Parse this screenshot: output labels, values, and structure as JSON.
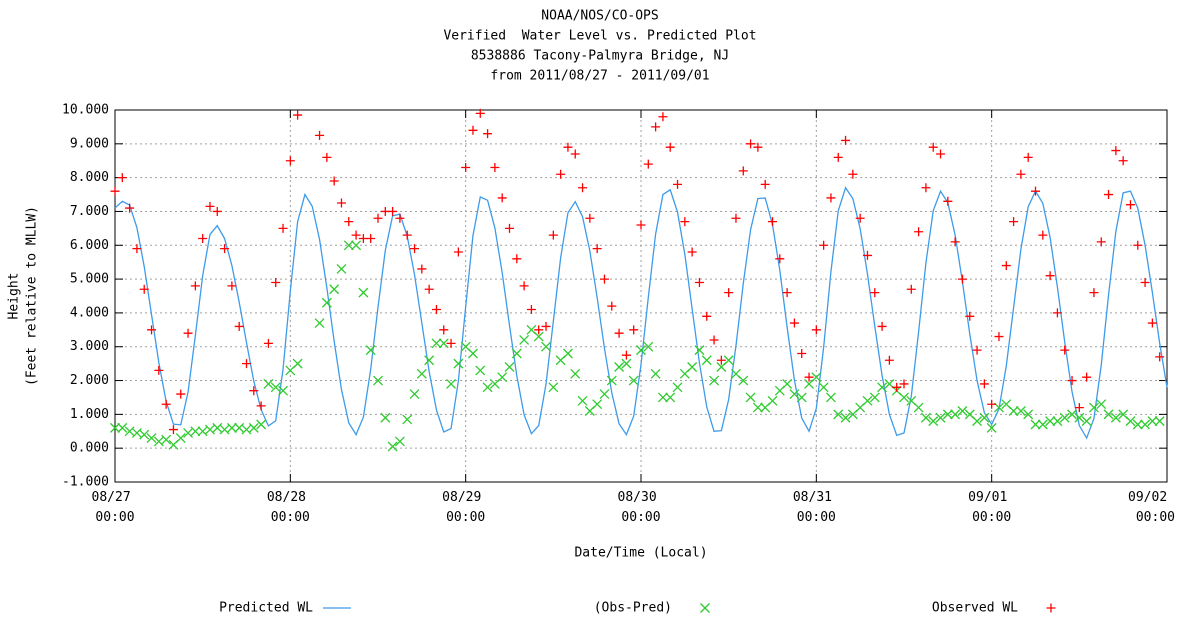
{
  "chart_data": {
    "type": "line",
    "title": [
      "NOAA/NOS/CO-OPS",
      "Verified  Water Level vs. Predicted Plot",
      "8538886 Tacony-Palmyra Bridge, NJ",
      "from 2011/08/27 - 2011/09/01"
    ],
    "ylabel": [
      "Height",
      "(Feet relative to MLLW)"
    ],
    "xlabel": "Date/Time (Local)",
    "ylim": [
      -1,
      10
    ],
    "yticks": [
      {
        "value": 10,
        "label": "10.000"
      },
      {
        "value": 9,
        "label": "9.000"
      },
      {
        "value": 8,
        "label": "8.000"
      },
      {
        "value": 7,
        "label": "7.000"
      },
      {
        "value": 6,
        "label": "6.000"
      },
      {
        "value": 5,
        "label": "5.000"
      },
      {
        "value": 4,
        "label": "4.000"
      },
      {
        "value": 3,
        "label": "3.000"
      },
      {
        "value": 2,
        "label": "2.000"
      },
      {
        "value": 1,
        "label": "1.000"
      },
      {
        "value": 0,
        "label": "0.000"
      },
      {
        "value": -1,
        "label": "-1.000"
      }
    ],
    "xlim": [
      "08/27 00:00",
      "09/02 00:00"
    ],
    "xticks": [
      "08/27 00:00",
      "08/28 00:00",
      "08/29 00:00",
      "08/30 00:00",
      "08/31 00:00",
      "09/01 00:00",
      "09/02 00:00"
    ],
    "grid": true,
    "legend": "bottom",
    "x": [
      "08/27 00:00",
      "08/27 01:00",
      "08/27 02:00",
      "08/27 03:00",
      "08/27 04:00",
      "08/27 05:00",
      "08/27 06:00",
      "08/27 07:00",
      "08/27 08:00",
      "08/27 09:00",
      "08/27 10:00",
      "08/27 11:00",
      "08/27 12:00",
      "08/27 13:00",
      "08/27 14:00",
      "08/27 15:00",
      "08/27 16:00",
      "08/27 17:00",
      "08/27 18:00",
      "08/27 19:00",
      "08/27 20:00",
      "08/27 21:00",
      "08/27 22:00",
      "08/27 23:00",
      "08/28 00:00",
      "08/28 01:00",
      "08/28 02:00",
      "08/28 03:00",
      "08/28 04:00",
      "08/28 05:00",
      "08/28 06:00",
      "08/28 07:00",
      "08/28 08:00",
      "08/28 09:00",
      "08/28 10:00",
      "08/28 11:00",
      "08/28 12:00",
      "08/28 13:00",
      "08/28 14:00",
      "08/28 15:00",
      "08/28 16:00",
      "08/28 17:00",
      "08/28 18:00",
      "08/28 19:00",
      "08/28 20:00",
      "08/28 21:00",
      "08/28 22:00",
      "08/28 23:00",
      "08/29 00:00",
      "08/29 01:00",
      "08/29 02:00",
      "08/29 03:00",
      "08/29 04:00",
      "08/29 05:00",
      "08/29 06:00",
      "08/29 07:00",
      "08/29 08:00",
      "08/29 09:00",
      "08/29 10:00",
      "08/29 11:00",
      "08/29 12:00",
      "08/29 13:00",
      "08/29 14:00",
      "08/29 15:00",
      "08/29 16:00",
      "08/29 17:00",
      "08/29 18:00",
      "08/29 19:00",
      "08/29 20:00",
      "08/29 21:00",
      "08/29 22:00",
      "08/29 23:00",
      "08/30 00:00",
      "08/30 01:00",
      "08/30 02:00",
      "08/30 03:00",
      "08/30 04:00",
      "08/30 05:00",
      "08/30 06:00",
      "08/30 07:00",
      "08/30 08:00",
      "08/30 09:00",
      "08/30 10:00",
      "08/30 11:00",
      "08/30 12:00",
      "08/30 13:00",
      "08/30 14:00",
      "08/30 15:00",
      "08/30 16:00",
      "08/30 17:00",
      "08/30 18:00",
      "08/30 19:00",
      "08/30 20:00",
      "08/30 21:00",
      "08/30 22:00",
      "08/30 23:00",
      "08/31 00:00",
      "08/31 01:00",
      "08/31 02:00",
      "08/31 03:00",
      "08/31 04:00",
      "08/31 05:00",
      "08/31 06:00",
      "08/31 07:00",
      "08/31 08:00",
      "08/31 09:00",
      "08/31 10:00",
      "08/31 11:00",
      "08/31 12:00",
      "08/31 13:00",
      "08/31 14:00",
      "08/31 15:00",
      "08/31 16:00",
      "08/31 17:00",
      "08/31 18:00",
      "08/31 19:00",
      "08/31 20:00",
      "08/31 21:00",
      "08/31 22:00",
      "08/31 23:00",
      "09/01 00:00",
      "09/01 01:00",
      "09/01 02:00",
      "09/01 03:00",
      "09/01 04:00",
      "09/01 05:00",
      "09/01 06:00",
      "09/01 07:00",
      "09/01 08:00",
      "09/01 09:00",
      "09/01 10:00",
      "09/01 11:00",
      "09/01 12:00",
      "09/01 13:00",
      "09/01 14:00",
      "09/01 15:00",
      "09/01 16:00",
      "09/01 17:00",
      "09/01 18:00",
      "09/01 19:00",
      "09/01 20:00",
      "09/01 21:00",
      "09/01 22:00",
      "09/01 23:00",
      "09/02 00:00"
    ],
    "series": [
      {
        "name": "Predicted WL",
        "color": "#3d9be9",
        "marker": "line",
        "values": [
          7.1,
          7.3,
          7.19,
          6.52,
          5.37,
          3.95,
          2.53,
          1.38,
          0.71,
          0.69,
          1.66,
          3.33,
          5.1,
          6.32,
          6.58,
          6.2,
          5.4,
          4.32,
          3.12,
          1.98,
          1.14,
          0.66,
          0.81,
          2.33,
          4.65,
          6.7,
          7.5,
          7.15,
          6.17,
          4.74,
          3.16,
          1.73,
          0.75,
          0.4,
          0.92,
          2.33,
          4.17,
          5.85,
          6.87,
          6.92,
          6.27,
          5.13,
          3.7,
          2.27,
          1.13,
          0.48,
          0.58,
          1.98,
          4.18,
          6.29,
          7.43,
          7.33,
          6.51,
          5.19,
          3.63,
          2.14,
          0.99,
          0.43,
          0.67,
          1.9,
          3.75,
          5.63,
          6.96,
          7.29,
          6.84,
          5.83,
          4.45,
          2.95,
          1.64,
          0.72,
          0.4,
          0.95,
          2.47,
          4.46,
          6.33,
          7.5,
          7.64,
          6.98,
          5.73,
          4.12,
          2.52,
          1.22,
          0.5,
          0.52,
          1.44,
          3.03,
          4.87,
          6.46,
          7.38,
          7.4,
          6.61,
          5.26,
          3.58,
          2.01,
          0.89,
          0.5,
          1.18,
          2.98,
          5.22,
          7.02,
          7.7,
          7.38,
          6.49,
          5.15,
          3.61,
          2.15,
          1.0,
          0.38,
          0.45,
          1.54,
          3.44,
          5.48,
          7.02,
          7.6,
          7.26,
          6.3,
          4.92,
          3.38,
          2.0,
          1.05,
          0.7,
          1.16,
          2.43,
          4.15,
          5.88,
          7.14,
          7.6,
          7.24,
          6.23,
          4.76,
          3.14,
          1.67,
          0.67,
          0.3,
          0.88,
          2.46,
          4.53,
          6.41,
          7.55,
          7.6,
          7.1,
          6.0,
          4.6,
          3.1,
          1.8
        ]
      },
      {
        "name": "(Obs-Pred)",
        "color": "#2fcb2f",
        "marker": "cross",
        "values": [
          0.6,
          0.6,
          0.5,
          0.45,
          0.4,
          0.3,
          0.2,
          0.25,
          0.1,
          0.3,
          0.45,
          0.5,
          0.5,
          0.55,
          0.6,
          0.55,
          0.6,
          0.6,
          0.55,
          0.6,
          0.7,
          1.9,
          1.8,
          1.7,
          2.3,
          2.5,
          null,
          null,
          3.7,
          4.3,
          4.7,
          5.3,
          6.0,
          6.0,
          4.6,
          2.9,
          2.0,
          0.9,
          0.05,
          0.2,
          0.85,
          1.6,
          2.2,
          2.6,
          3.1,
          3.1,
          1.9,
          2.5,
          3.0,
          2.8,
          2.3,
          1.8,
          1.9,
          2.1,
          2.4,
          2.8,
          3.2,
          3.5,
          3.3,
          3.0,
          1.8,
          2.6,
          2.8,
          2.2,
          1.4,
          1.1,
          1.3,
          1.6,
          2.0,
          2.4,
          2.5,
          2.0,
          2.9,
          3.0,
          2.2,
          1.5,
          1.5,
          1.8,
          2.2,
          2.4,
          2.9,
          2.6,
          2.0,
          2.4,
          2.6,
          2.2,
          2.0,
          1.5,
          1.2,
          1.2,
          1.4,
          1.7,
          1.9,
          1.6,
          1.5,
          1.9,
          2.1,
          1.8,
          1.5,
          1.0,
          0.9,
          1.0,
          1.2,
          1.4,
          1.5,
          1.8,
          1.9,
          1.7,
          1.5,
          1.4,
          1.2,
          0.9,
          0.8,
          0.9,
          1.0,
          1.0,
          1.1,
          1.0,
          0.8,
          0.9,
          0.6,
          1.2,
          1.3,
          1.1,
          1.1,
          1.0,
          0.7,
          0.7,
          0.8,
          0.8,
          0.9,
          1.0,
          0.9,
          0.8,
          1.2,
          1.3,
          1.0,
          0.9,
          1.0,
          0.8,
          0.7,
          0.7,
          0.8,
          0.8,
          null
        ]
      },
      {
        "name": "Observed WL",
        "color": "#ff0000",
        "marker": "plus",
        "values": [
          7.6,
          8.0,
          7.1,
          5.9,
          4.7,
          3.5,
          2.3,
          1.3,
          0.55,
          1.6,
          3.4,
          4.8,
          6.2,
          7.15,
          7.0,
          5.9,
          4.8,
          3.6,
          2.5,
          1.7,
          1.25,
          3.1,
          4.9,
          6.5,
          8.5,
          9.85,
          null,
          null,
          9.25,
          8.6,
          7.9,
          7.25,
          6.7,
          6.3,
          6.2,
          6.2,
          6.8,
          7.0,
          7.0,
          6.8,
          6.3,
          5.9,
          5.3,
          4.7,
          4.1,
          3.5,
          3.1,
          5.8,
          8.3,
          9.4,
          9.9,
          9.3,
          8.3,
          7.4,
          6.5,
          5.6,
          4.8,
          4.1,
          3.5,
          3.6,
          6.3,
          8.1,
          8.9,
          8.7,
          7.7,
          6.8,
          5.9,
          5.0,
          4.2,
          3.4,
          2.75,
          3.5,
          6.6,
          8.4,
          9.5,
          9.8,
          8.9,
          7.8,
          6.7,
          5.8,
          4.9,
          3.9,
          3.2,
          2.6,
          4.6,
          6.8,
          8.2,
          9.0,
          8.9,
          7.8,
          6.7,
          5.6,
          4.6,
          3.7,
          2.8,
          2.1,
          3.5,
          6.0,
          7.4,
          8.6,
          9.1,
          8.1,
          6.8,
          5.7,
          4.6,
          3.6,
          2.6,
          1.8,
          1.9,
          4.7,
          6.4,
          7.7,
          8.9,
          8.7,
          7.3,
          6.1,
          5.0,
          3.9,
          2.9,
          1.9,
          1.3,
          3.3,
          5.4,
          6.7,
          8.1,
          8.6,
          7.6,
          6.3,
          5.1,
          4.0,
          2.9,
          2.0,
          1.2,
          2.1,
          4.6,
          6.1,
          7.5,
          8.8,
          8.5,
          7.2,
          6.0,
          4.9,
          3.7,
          2.7,
          null
        ]
      }
    ]
  }
}
